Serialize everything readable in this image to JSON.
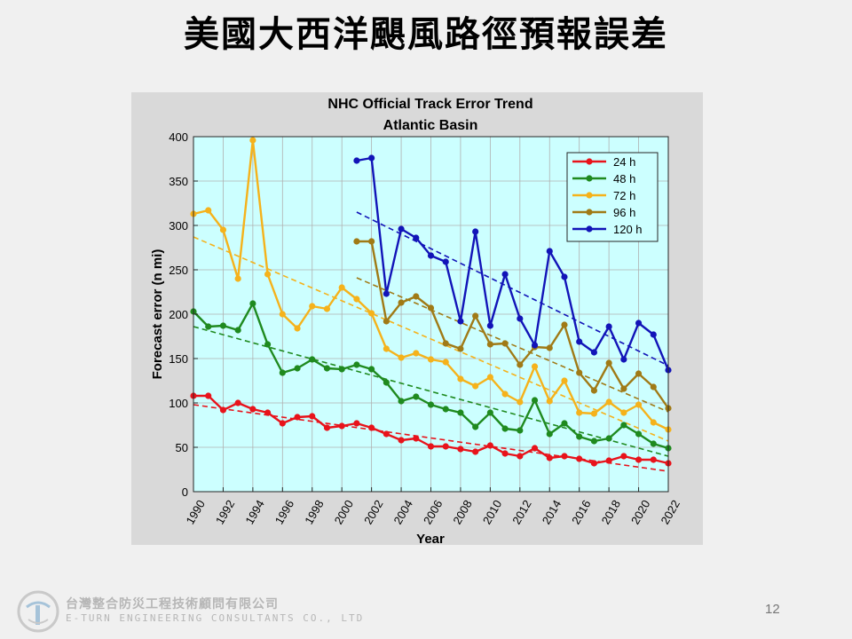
{
  "slide": {
    "title": "美國大西洋颶風路徑預報誤差",
    "company_name": "台灣整合防災工程技術顧問有限公司",
    "company_name_en": "E-TURN ENGINEERING CONSULTANTS CO., LTD",
    "page_number": "12"
  },
  "colors": {
    "figure_bg": "#d9d9d9",
    "plot_bg": "#ccffff",
    "grid": "#b0b0b0"
  },
  "chart_data": {
    "type": "line",
    "title": "NHC Official Track Error Trend",
    "subtitle": "Atlantic Basin",
    "xlabel": "Year",
    "ylabel": "Forecast error (n mi)",
    "xlim": [
      1990,
      2022
    ],
    "ylim": [
      0,
      400
    ],
    "xticks": [
      1990,
      1992,
      1994,
      1996,
      1998,
      2000,
      2002,
      2004,
      2006,
      2008,
      2010,
      2012,
      2014,
      2016,
      2018,
      2020,
      2022
    ],
    "yticks": [
      0,
      50,
      100,
      150,
      200,
      250,
      300,
      350,
      400
    ],
    "grid": true,
    "legend_position": "top-right",
    "series": [
      {
        "name": "24 h",
        "color": "#e8131b",
        "x": [
          1990,
          1991,
          1992,
          1993,
          1994,
          1995,
          1996,
          1997,
          1998,
          1999,
          2000,
          2001,
          2002,
          2003,
          2004,
          2005,
          2006,
          2007,
          2008,
          2009,
          2010,
          2011,
          2012,
          2013,
          2014,
          2015,
          2016,
          2017,
          2018,
          2019,
          2020,
          2021,
          2022
        ],
        "y": [
          108,
          108,
          92,
          100,
          93,
          89,
          77,
          84,
          85,
          72,
          74,
          77,
          72,
          65,
          58,
          60,
          51,
          51,
          48,
          45,
          52,
          43,
          40,
          49,
          38,
          40,
          37,
          32,
          35,
          40,
          36,
          36,
          32
        ],
        "trend": [
          98,
          23
        ]
      },
      {
        "name": "48 h",
        "color": "#1f8a1f",
        "x": [
          1990,
          1991,
          1992,
          1993,
          1994,
          1995,
          1996,
          1997,
          1998,
          1999,
          2000,
          2001,
          2002,
          2003,
          2004,
          2005,
          2006,
          2007,
          2008,
          2009,
          2010,
          2011,
          2012,
          2013,
          2014,
          2015,
          2016,
          2017,
          2018,
          2019,
          2020,
          2021,
          2022
        ],
        "y": [
          203,
          186,
          187,
          182,
          212,
          166,
          134,
          139,
          149,
          139,
          138,
          143,
          138,
          123,
          102,
          107,
          98,
          93,
          89,
          73,
          89,
          71,
          69,
          103,
          65,
          77,
          62,
          57,
          60,
          75,
          65,
          54,
          49
        ],
        "trend": [
          186,
          40
        ]
      },
      {
        "name": "72 h",
        "color": "#f5b21b",
        "x": [
          1990,
          1991,
          1992,
          1993,
          1994,
          1995,
          1996,
          1997,
          1998,
          1999,
          2000,
          2001,
          2002,
          2003,
          2004,
          2005,
          2006,
          2007,
          2008,
          2009,
          2010,
          2011,
          2012,
          2013,
          2014,
          2015,
          2016,
          2017,
          2018,
          2019,
          2020,
          2021,
          2022
        ],
        "y": [
          313,
          317,
          295,
          240,
          396,
          245,
          200,
          184,
          209,
          206,
          230,
          217,
          201,
          161,
          151,
          156,
          149,
          146,
          127,
          119,
          129,
          110,
          101,
          141,
          102,
          125,
          89,
          88,
          101,
          89,
          98,
          78,
          70
        ],
        "trend": [
          287,
          57
        ]
      },
      {
        "name": "96 h",
        "color": "#a07a16",
        "x": [
          2001,
          2002,
          2003,
          2004,
          2005,
          2006,
          2007,
          2008,
          2009,
          2010,
          2011,
          2012,
          2013,
          2014,
          2015,
          2016,
          2017,
          2018,
          2019,
          2020,
          2021,
          2022
        ],
        "y": [
          282,
          282,
          192,
          213,
          220,
          207,
          167,
          161,
          198,
          166,
          167,
          143,
          163,
          162,
          188,
          134,
          114,
          145,
          116,
          133,
          118,
          94
        ],
        "trend": [
          241,
          90
        ]
      },
      {
        "name": "120 h",
        "color": "#1214b8",
        "x": [
          2001,
          2002,
          2003,
          2004,
          2005,
          2006,
          2007,
          2008,
          2009,
          2010,
          2011,
          2012,
          2013,
          2014,
          2015,
          2016,
          2017,
          2018,
          2019,
          2020,
          2021,
          2022
        ],
        "y": [
          373,
          376,
          223,
          296,
          286,
          266,
          259,
          192,
          293,
          187,
          245,
          195,
          165,
          271,
          242,
          169,
          157,
          186,
          149,
          190,
          177,
          137
        ],
        "trend": [
          315,
          142
        ]
      }
    ]
  }
}
